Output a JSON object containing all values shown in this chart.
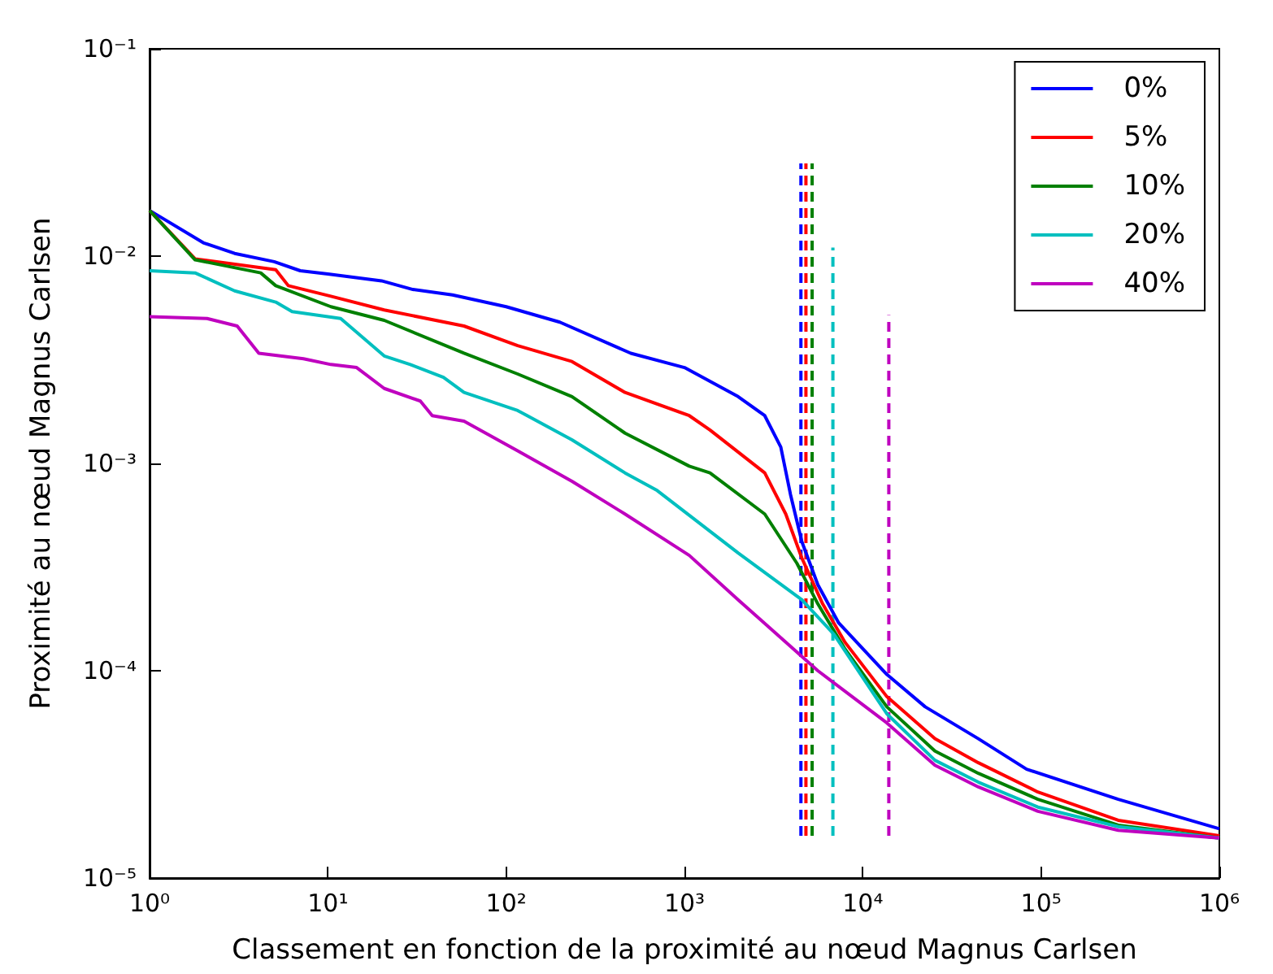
{
  "chart_data": {
    "type": "line",
    "xlabel": "Classement en fonction de la proximité au nœud Magnus Carlsen",
    "ylabel": "Proximité au nœud Magnus Carlsen",
    "log": "xy",
    "grid": false,
    "legend": "top right",
    "marker": "none",
    "line_style": "solid",
    "xlim": [
      1,
      1000000
    ],
    "ylim": [
      1e-05,
      0.1
    ],
    "xticks": [
      {
        "value": 1,
        "label": "10⁰"
      },
      {
        "value": 10,
        "label": "10¹"
      },
      {
        "value": 100,
        "label": "10²"
      },
      {
        "value": 1000,
        "label": "10³"
      },
      {
        "value": 10000,
        "label": "10⁴"
      },
      {
        "value": 100000,
        "label": "10⁵"
      },
      {
        "value": 1000000,
        "label": "10⁶"
      }
    ],
    "yticks": [
      {
        "value": 1e-05,
        "label": "10⁻⁵"
      },
      {
        "value": 0.0001,
        "label": "10⁻⁴"
      },
      {
        "value": 0.001,
        "label": "10⁻³"
      },
      {
        "value": 0.01,
        "label": "10⁻²"
      },
      {
        "value": 0.1,
        "label": "10⁻¹"
      }
    ],
    "series": [
      {
        "name": "0%",
        "color": "#0000ff",
        "x": [
          1,
          2,
          3,
          5,
          7,
          10,
          20,
          30,
          50,
          100,
          200,
          500,
          1000,
          2000,
          2820,
          3470,
          3930,
          4550,
          5600,
          7330,
          13650,
          22400,
          44500,
          83000,
          271000,
          1000000
        ],
        "values": [
          0.0166,
          0.0116,
          0.0103,
          0.0094,
          0.0085,
          0.0082,
          0.0076,
          0.0069,
          0.0065,
          0.0057,
          0.0048,
          0.0034,
          0.0029,
          0.0021,
          0.0017,
          0.0012,
          0.00071,
          0.00042,
          0.00026,
          0.00017,
          9.6e-05,
          6.7e-05,
          4.7e-05,
          3.35e-05,
          2.4e-05,
          1.73e-05
        ]
      },
      {
        "name": "5%",
        "color": "#ff0000",
        "x": [
          1,
          1.8,
          5.1,
          6,
          10.4,
          20.7,
          58,
          116,
          234,
          464,
          1064,
          1390,
          2820,
          3700,
          4550,
          5960,
          7960,
          13650,
          25400,
          44500,
          96000,
          271000,
          1000000
        ],
        "values": [
          0.0166,
          0.0097,
          0.0086,
          0.0072,
          0.0064,
          0.0055,
          0.0046,
          0.0037,
          0.0031,
          0.0022,
          0.0017,
          0.00145,
          0.0009,
          0.00057,
          0.00035,
          0.00021,
          0.000137,
          7.5e-05,
          4.7e-05,
          3.6e-05,
          2.6e-05,
          1.9e-05,
          1.6e-05
        ]
      },
      {
        "name": "10%",
        "color": "#008000",
        "x": [
          1,
          1.8,
          4.2,
          5.1,
          10.4,
          20.7,
          58,
          116,
          234,
          464,
          1064,
          1390,
          2820,
          4270,
          5600,
          7960,
          13650,
          25400,
          44500,
          96000,
          271000,
          1000000
        ],
        "values": [
          0.0166,
          0.0096,
          0.0083,
          0.0072,
          0.0057,
          0.0049,
          0.0034,
          0.0027,
          0.0021,
          0.0014,
          0.00097,
          0.0009,
          0.00057,
          0.00033,
          0.00021,
          0.000127,
          6.7e-05,
          4.1e-05,
          3.2e-05,
          2.4e-05,
          1.8e-05,
          1.56e-05
        ]
      },
      {
        "name": "20%",
        "color": "#00bfbf",
        "x": [
          1,
          1.8,
          3,
          5.1,
          6.3,
          11.8,
          20.7,
          29,
          44.5,
          58,
          116,
          234,
          464,
          703,
          2000,
          4550,
          6890,
          13650,
          25400,
          44500,
          96000,
          271000,
          1000000
        ],
        "values": [
          0.0085,
          0.0083,
          0.0068,
          0.006,
          0.0054,
          0.005,
          0.0033,
          0.003,
          0.0026,
          0.0022,
          0.0018,
          0.0013,
          0.0009,
          0.00074,
          0.00037,
          0.00022,
          0.00015,
          6.2e-05,
          3.7e-05,
          2.9e-05,
          2.2e-05,
          1.77e-05,
          1.56e-05
        ]
      },
      {
        "name": "40%",
        "color": "#bf00bf",
        "x": [
          1,
          2.1,
          3.1,
          4.1,
          7.3,
          10.4,
          14.5,
          20.7,
          33,
          38.5,
          58,
          116,
          234,
          464,
          1064,
          2000,
          5600,
          13650,
          25400,
          44500,
          96000,
          271000,
          1000000
        ],
        "values": [
          0.0051,
          0.005,
          0.0046,
          0.0034,
          0.0032,
          0.003,
          0.0029,
          0.0023,
          0.002,
          0.0017,
          0.0016,
          0.00115,
          0.00082,
          0.00057,
          0.00036,
          0.00022,
          0.0001,
          5.6e-05,
          3.5e-05,
          2.75e-05,
          2.1e-05,
          1.7e-05,
          1.56e-05
        ]
      },
      {
        "color": "#0000ff",
        "line_style": "dashed",
        "x": [
          4500,
          4500
        ],
        "values": [
          1.6e-05,
          0.028
        ]
      },
      {
        "color": "#ff0000",
        "line_style": "dashed",
        "x": [
          4800,
          4800
        ],
        "values": [
          1.6e-05,
          0.028
        ]
      },
      {
        "color": "#008000",
        "line_style": "dashed",
        "x": [
          5200,
          5200
        ],
        "values": [
          1.6e-05,
          0.028
        ]
      },
      {
        "color": "#00bfbf",
        "line_style": "dashed",
        "x": [
          6800,
          6800
        ],
        "values": [
          1.6e-05,
          0.011
        ]
      },
      {
        "color": "#bf00bf",
        "line_style": "dashed",
        "x": [
          14000,
          14000
        ],
        "values": [
          1.6e-05,
          0.0052
        ]
      }
    ]
  }
}
